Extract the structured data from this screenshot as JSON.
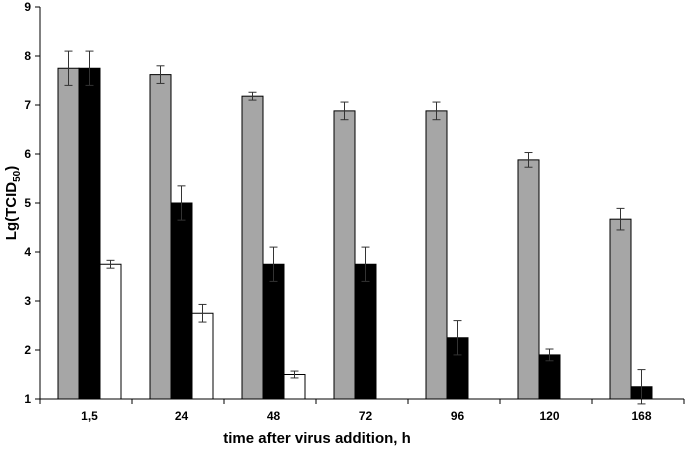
{
  "chart_data": {
    "type": "bar",
    "title": "",
    "xlabel": "time after virus addition, h",
    "ylabel": "Lg(TCID",
    "ylabel_sub": "50",
    "ylabel_close": ")",
    "ylim": [
      1,
      9
    ],
    "yticks": [
      "1",
      "2",
      "3",
      "4",
      "5",
      "6",
      "7",
      "8",
      "9"
    ],
    "grid": false,
    "legend": "none",
    "categories": [
      "1,5",
      "24",
      "48",
      "72",
      "96",
      "120",
      "168"
    ],
    "series": [
      {
        "color": "#a6a6a6",
        "values": [
          7.75,
          7.62,
          7.18,
          6.88,
          6.88,
          5.88,
          4.67
        ],
        "errors": [
          0.35,
          0.18,
          0.08,
          0.18,
          0.18,
          0.15,
          0.22
        ]
      },
      {
        "color": "#000000",
        "values": [
          7.75,
          5.0,
          3.75,
          3.75,
          2.25,
          1.9,
          1.25
        ],
        "errors": [
          0.35,
          0.35,
          0.35,
          0.35,
          0.35,
          0.12,
          0.35
        ]
      },
      {
        "color": "#ffffff",
        "values": [
          3.75,
          2.75,
          1.5,
          null,
          null,
          null,
          null
        ],
        "errors": [
          0.08,
          0.18,
          0.07,
          null,
          null,
          null,
          null
        ]
      }
    ]
  }
}
